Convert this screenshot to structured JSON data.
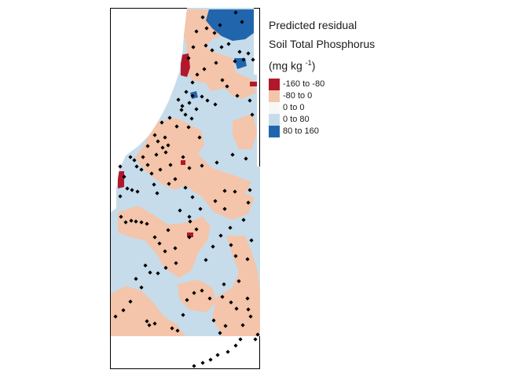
{
  "legend": {
    "title_line1": "Predicted residual",
    "title_line2": "Soil Total Phosphorus",
    "title_line3_prefix": "(mg kg ",
    "title_line3_sup": "-1",
    "title_line3_suffix": ")",
    "classes": [
      {
        "label": "-160 to -80",
        "color": "#b2182b"
      },
      {
        "label": "-80 to 0",
        "color": "#f4c5aa"
      },
      {
        "label": "0 to 0",
        "color": "#f7f7f7"
      },
      {
        "label": "0 to 80",
        "color": "#c6dceb"
      },
      {
        "label": "80 to 160",
        "color": "#2166ac"
      }
    ]
  },
  "map": {
    "point_color": "#000000",
    "outside_color": "#ffffff"
  }
}
